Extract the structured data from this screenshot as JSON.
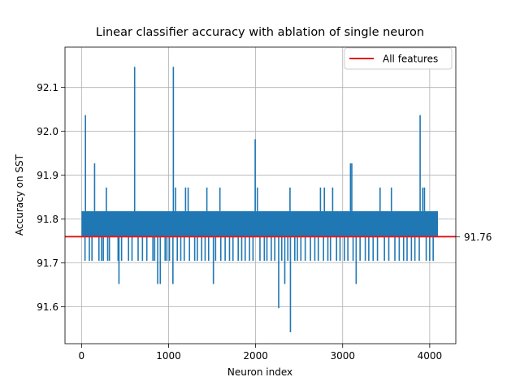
{
  "chart_data": {
    "type": "line",
    "title": "Linear classifier accuracy with ablation of single neuron",
    "xlabel": "Neuron index",
    "ylabel": "Accuracy on SST",
    "xlim": [
      -190,
      4300
    ],
    "ylim": [
      91.516,
      92.192
    ],
    "grid": true,
    "legend": {
      "placement": "top-right",
      "entries": [
        "All features"
      ]
    },
    "x_ticks": [
      {
        "value": 0,
        "label": "0"
      },
      {
        "value": 1000,
        "label": "1000"
      },
      {
        "value": 2000,
        "label": "2000"
      },
      {
        "value": 3000,
        "label": "3000"
      },
      {
        "value": 4000,
        "label": "4000"
      }
    ],
    "y_ticks": [
      {
        "value": 91.6,
        "label": "91.6"
      },
      {
        "value": 91.7,
        "label": "91.7"
      },
      {
        "value": 91.8,
        "label": "91.8"
      },
      {
        "value": 91.9,
        "label": "91.9"
      },
      {
        "value": 92.0,
        "label": "92.0"
      },
      {
        "value": 92.1,
        "label": "92.1"
      }
    ],
    "series": [
      {
        "color": "#1f77b4",
        "n_points": 4096,
        "band_low": 91.76,
        "band_high": 91.818,
        "spikes": [
          {
            "x": 45,
            "y": 92.037
          },
          {
            "x": 150,
            "y": 91.927
          },
          {
            "x": 285,
            "y": 91.872
          },
          {
            "x": 610,
            "y": 92.147
          },
          {
            "x": 1055,
            "y": 92.147
          },
          {
            "x": 1080,
            "y": 91.872
          },
          {
            "x": 1195,
            "y": 91.872
          },
          {
            "x": 1225,
            "y": 91.872
          },
          {
            "x": 1440,
            "y": 91.872
          },
          {
            "x": 1590,
            "y": 91.872
          },
          {
            "x": 1995,
            "y": 91.982
          },
          {
            "x": 2020,
            "y": 91.872
          },
          {
            "x": 2395,
            "y": 91.872
          },
          {
            "x": 2745,
            "y": 91.872
          },
          {
            "x": 2790,
            "y": 91.872
          },
          {
            "x": 2885,
            "y": 91.872
          },
          {
            "x": 3090,
            "y": 91.927
          },
          {
            "x": 3105,
            "y": 91.927
          },
          {
            "x": 3430,
            "y": 91.872
          },
          {
            "x": 3560,
            "y": 91.872
          },
          {
            "x": 3890,
            "y": 92.037
          },
          {
            "x": 3920,
            "y": 91.872
          },
          {
            "x": 3940,
            "y": 91.872
          },
          {
            "x": 430,
            "y": 91.652
          },
          {
            "x": 875,
            "y": 91.652
          },
          {
            "x": 905,
            "y": 91.652
          },
          {
            "x": 1050,
            "y": 91.652
          },
          {
            "x": 1515,
            "y": 91.652
          },
          {
            "x": 2265,
            "y": 91.597
          },
          {
            "x": 2335,
            "y": 91.652
          },
          {
            "x": 2400,
            "y": 91.542
          },
          {
            "x": 3155,
            "y": 91.652
          }
        ],
        "dips_to": 91.705,
        "dip_positions": [
          40,
          90,
          120,
          200,
          230,
          250,
          300,
          320,
          420,
          460,
          540,
          580,
          650,
          700,
          750,
          820,
          840,
          960,
          980,
          1010,
          1100,
          1140,
          1180,
          1240,
          1300,
          1330,
          1380,
          1420,
          1460,
          1540,
          1600,
          1650,
          1700,
          1740,
          1800,
          1840,
          1880,
          1930,
          1970,
          2050,
          2100,
          2130,
          2180,
          2220,
          2300,
          2370,
          2450,
          2480,
          2520,
          2570,
          2630,
          2680,
          2720,
          2780,
          2830,
          2860,
          2930,
          2970,
          3020,
          3060,
          3120,
          3200,
          3260,
          3300,
          3350,
          3400,
          3480,
          3530,
          3600,
          3650,
          3700,
          3740,
          3790,
          3830,
          3880,
          3960,
          4000,
          4040
        ]
      }
    ],
    "reference_line": {
      "name": "All features",
      "y": 91.76,
      "label": "91.76",
      "color": "#e31a1c"
    }
  }
}
